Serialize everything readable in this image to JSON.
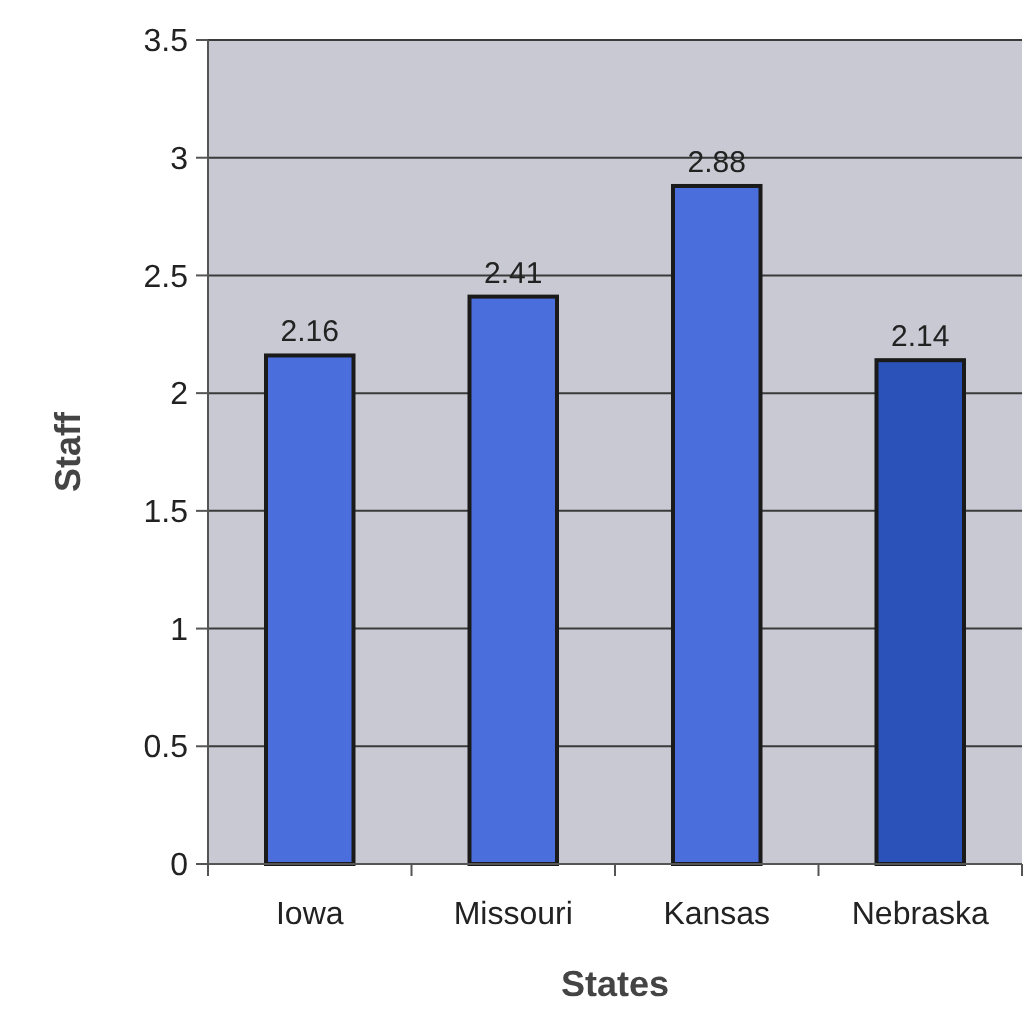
{
  "chart_data": {
    "type": "bar",
    "xlabel": "States",
    "ylabel": "Staff",
    "categories": [
      "Iowa",
      "Missouri",
      "Kansas",
      "Nebraska"
    ],
    "values": [
      2.16,
      2.41,
      2.88,
      2.14
    ],
    "colors": [
      "#4a6fdc",
      "#4a6fdc",
      "#4a6fdc",
      "#2a52b8"
    ],
    "ylim": [
      0,
      3.5
    ],
    "yticks": [
      0,
      0.5,
      1,
      1.5,
      2,
      2.5,
      3,
      3.5
    ],
    "grid": "y",
    "data_labels": true
  }
}
